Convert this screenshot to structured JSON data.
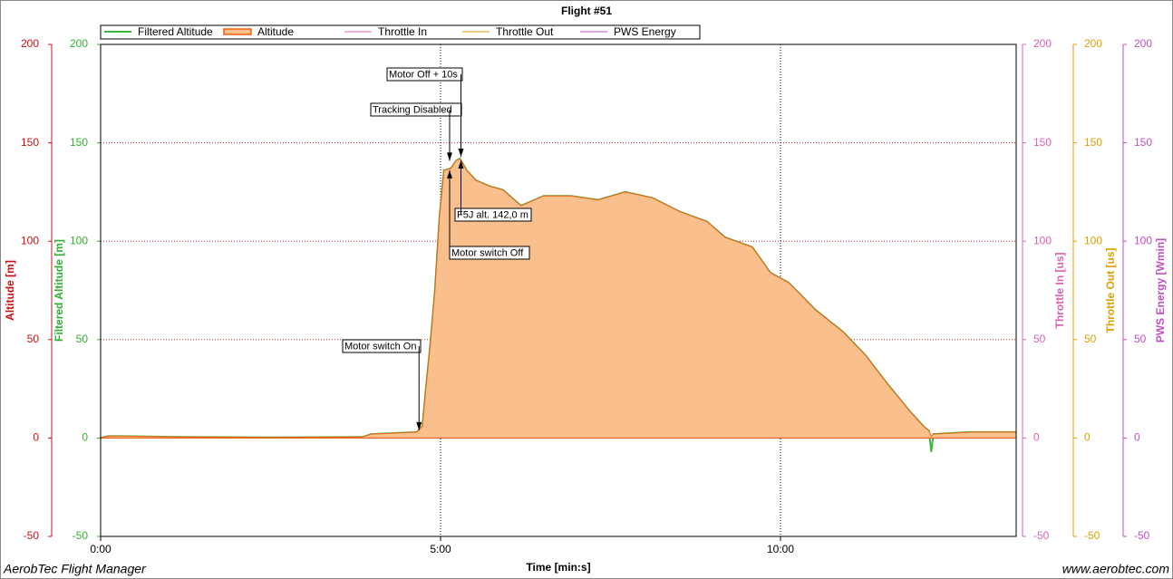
{
  "chart_data": {
    "type": "line",
    "title": "Flight #51",
    "xlabel": "Time [min:s]",
    "footer_left": "AerobTec Flight Manager",
    "footer_right": "www.aerobtec.com",
    "xlim": [
      0,
      808
    ],
    "xticks": [
      {
        "value": 0,
        "label": "0:00"
      },
      {
        "value": 300,
        "label": "5:00"
      },
      {
        "value": 600,
        "label": "10:00"
      }
    ],
    "grid": true,
    "y_axes": [
      {
        "label": "Altitude [m]",
        "color": "#d01010",
        "side": "left",
        "ylim": [
          -50,
          200
        ],
        "yticks": [
          -50,
          0,
          50,
          100,
          150,
          200
        ]
      },
      {
        "label": "Filtered Altitude [m]",
        "color": "#30b030",
        "side": "left",
        "ylim": [
          -50,
          200
        ],
        "yticks": [
          -50,
          0,
          50,
          100,
          150,
          200
        ]
      },
      {
        "label": "Throttle In [us]",
        "color": "#e060b0",
        "side": "right",
        "ylim": [
          -50,
          200
        ],
        "yticks": [
          -50,
          0,
          50,
          100,
          150,
          200
        ]
      },
      {
        "label": "Throttle Out [us]",
        "color": "#e0a000",
        "side": "right",
        "ylim": [
          -50,
          200
        ],
        "yticks": [
          -50,
          0,
          50,
          100,
          150,
          200
        ]
      },
      {
        "label": "PWS Energy [Wmin]",
        "color": "#c050c0",
        "side": "right",
        "ylim": [
          -50,
          200
        ],
        "yticks": [
          -50,
          0,
          50,
          100,
          150,
          200
        ]
      }
    ],
    "x": [
      0,
      7,
      71,
      151,
      231,
      239,
      279,
      284,
      287,
      291,
      295,
      299,
      303,
      309,
      314,
      317,
      323,
      331,
      343,
      355,
      371,
      391,
      415,
      439,
      463,
      487,
      511,
      535,
      551,
      575,
      591,
      607,
      631,
      655,
      675,
      695,
      715,
      727,
      731,
      733,
      735,
      767,
      791,
      808
    ],
    "series": [
      {
        "name": "Filtered Altitude",
        "color": "#3cb83c",
        "axis": 1,
        "values": [
          0,
          1,
          0.5,
          0.3,
          0.5,
          2,
          3,
          6,
          25,
          48,
          75,
          112,
          136,
          137,
          141,
          142,
          136,
          131,
          128,
          126,
          118,
          123,
          123,
          121,
          125,
          122,
          115,
          110,
          102,
          97,
          84,
          79,
          65,
          54,
          42,
          27,
          13,
          5.5,
          3.7,
          -7,
          2,
          3,
          3,
          3
        ]
      },
      {
        "name": "Altitude",
        "color": "#f06010",
        "fill": "#f9c08e",
        "axis": 0,
        "values": [
          0,
          1,
          0.5,
          0.3,
          0.5,
          2,
          3,
          6,
          25,
          48,
          75,
          112,
          136,
          137,
          141,
          142,
          136,
          131,
          128,
          126,
          118,
          123,
          123,
          121,
          125,
          122,
          115,
          110,
          102,
          97,
          84,
          79,
          65,
          54,
          42,
          27,
          13,
          5.5,
          3.7,
          1,
          2,
          3,
          3,
          3
        ]
      },
      {
        "name": "Throttle In",
        "color": "#e060b0",
        "axis": 2,
        "values": [
          0,
          0,
          0,
          0,
          0,
          0,
          0,
          0,
          0,
          0,
          0,
          0,
          0,
          0,
          0,
          0,
          0,
          0,
          0,
          0,
          0,
          0,
          0,
          0,
          0,
          0,
          0,
          0,
          0,
          0,
          0,
          0,
          0,
          0,
          0,
          0,
          0,
          0,
          0,
          0,
          0,
          0,
          0,
          0
        ]
      },
      {
        "name": "Throttle Out",
        "color": "#e0a000",
        "axis": 3,
        "values": [
          0,
          0,
          0,
          0,
          0,
          0,
          0,
          0,
          0,
          0,
          0,
          0,
          0,
          0,
          0,
          0,
          0,
          0,
          0,
          0,
          0,
          0,
          0,
          0,
          0,
          0,
          0,
          0,
          0,
          0,
          0,
          0,
          0,
          0,
          0,
          0,
          0,
          0,
          0,
          0,
          0,
          0,
          0,
          0
        ]
      },
      {
        "name": "PWS Energy",
        "color": "#c050c0",
        "axis": 4,
        "values": [
          0,
          0,
          0,
          0,
          0,
          0,
          0,
          0,
          0,
          0,
          0,
          0,
          0,
          0,
          0,
          0,
          0,
          0,
          0,
          0,
          0,
          0,
          0,
          0,
          0,
          0,
          0,
          0,
          0,
          0,
          0,
          0,
          0,
          0,
          0,
          0,
          0,
          0,
          0,
          0,
          0,
          0,
          0,
          0
        ]
      }
    ],
    "annotations": [
      {
        "text": "Motor switch On",
        "x": 281,
        "y": 3
      },
      {
        "text": "Tracking Disabled",
        "x": 308,
        "y": 140
      },
      {
        "text": "Motor Off + 10s",
        "x": 318,
        "y": 142
      },
      {
        "text": "F5J alt. 142,0 m",
        "x": 318,
        "y": 142
      },
      {
        "text": "Motor switch Off",
        "x": 308,
        "y": 137
      }
    ]
  }
}
